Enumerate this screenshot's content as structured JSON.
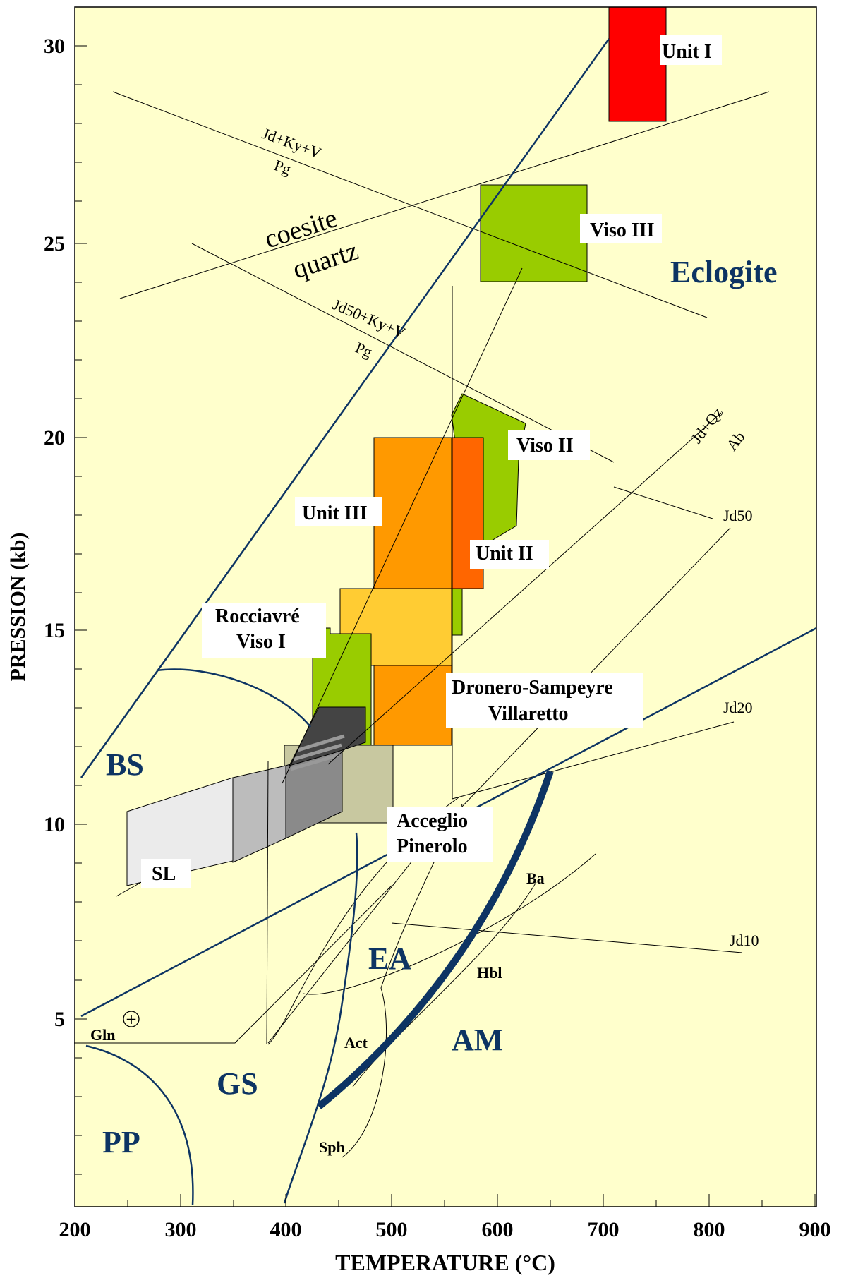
{
  "chart_data": {
    "type": "area",
    "title": "",
    "xlabel": "TEMPERATURE (°C)",
    "ylabel": "PRESSION (kb)",
    "xlim": [
      200,
      900
    ],
    "ylim": [
      0.5,
      31.1
    ],
    "x_ticks": [
      "200",
      "300",
      "400",
      "500",
      "600",
      "700",
      "800",
      "900"
    ],
    "y_ticks": [
      "5",
      "10",
      "15",
      "20",
      "25",
      "30"
    ],
    "x_tick_values": [
      200,
      300,
      400,
      500,
      600,
      700,
      800,
      900
    ],
    "y_tick_values": [
      5,
      10,
      15,
      20,
      25,
      30
    ],
    "background_color": "#ffffcc",
    "facies_color": "#0d3463",
    "facies_labels": [
      {
        "text": "Eclogite",
        "x": 812,
        "y": 24.3
      },
      {
        "text": "BS",
        "x": 252,
        "y": 11.5
      },
      {
        "text": "EA",
        "x": 498,
        "y": 6.2
      },
      {
        "text": "AM",
        "x": 583,
        "y": 4.0
      },
      {
        "text": "GS",
        "x": 358,
        "y": 2.8
      },
      {
        "text": "PP",
        "x": 247,
        "y": 1.3
      }
    ],
    "unit_boxes": [
      {
        "name": "Unit I",
        "color": "#ff0000",
        "points": [
          [
            700,
            28.1
          ],
          [
            750,
            28.1
          ],
          [
            750,
            31.1
          ],
          [
            700,
            31.1
          ]
        ],
        "label_x": 746,
        "label_y": 29.9
      },
      {
        "name": "Viso III",
        "color": "#99cc00",
        "points": [
          [
            630,
            24.0
          ],
          [
            680,
            24.0
          ],
          [
            680,
            26.5
          ],
          [
            630,
            26.5
          ]
        ],
        "label_x": 713,
        "label_y": 25.4
      },
      {
        "name": "Viso II",
        "color": "#99cc00",
        "points": [
          [
            556,
            15.0
          ],
          [
            568,
            15.0
          ],
          [
            568,
            16.0
          ],
          [
            556,
            16.0
          ],
          [
            556,
            17.5
          ],
          [
            602,
            17.5
          ],
          [
            618,
            20.3
          ],
          [
            606,
            21.1
          ],
          [
            586,
            21.1
          ],
          [
            556,
            21.1
          ]
        ],
        "label_x": 623,
        "label_y": 19.8
      },
      {
        "name": "Unit III",
        "color": "#ff9900",
        "points": [
          [
            480,
            16.0
          ],
          [
            556,
            16.0
          ],
          [
            556,
            20.0
          ],
          [
            480,
            20.0
          ]
        ],
        "label_x": 447,
        "label_y": 17.8
      },
      {
        "name": "Unit II",
        "color": "#ff6600",
        "points": [
          [
            556,
            16.0
          ],
          [
            595,
            16.0
          ],
          [
            595,
            20.0
          ],
          [
            556,
            20.0
          ]
        ],
        "label_x": 627,
        "label_y": 17.0
      },
      {
        "name": "Rocciavré",
        "color": "#ffcc33",
        "points": [
          [
            450,
            14.0
          ],
          [
            556,
            14.0
          ],
          [
            556,
            16.0
          ],
          [
            450,
            16.0
          ]
        ],
        "label_x": 330,
        "label_y": 15.3
      },
      {
        "name": "Viso I",
        "color": "#99cc00",
        "points": [
          [
            415,
            11.0
          ],
          [
            465,
            11.5
          ],
          [
            465,
            14.8
          ],
          [
            430,
            14.8
          ],
          [
            430,
            15.0
          ],
          [
            415,
            15.0
          ]
        ],
        "label_x": 330,
        "label_y": 14.5
      },
      {
        "name": "Dronero-Sampeyre",
        "color": "#ff9900",
        "points": [
          [
            480,
            12.0
          ],
          [
            556,
            12.0
          ],
          [
            556,
            14.0
          ],
          [
            480,
            14.0
          ]
        ],
        "label_x": 642,
        "label_y": 13.5
      },
      {
        "name": "Villaretto",
        "color": "#ff9900",
        "points": [
          [
            480,
            12.0
          ],
          [
            556,
            12.0
          ],
          [
            556,
            14.0
          ],
          [
            480,
            14.0
          ]
        ],
        "label_x": 642,
        "label_y": 12.8
      },
      {
        "name": "Acceglio",
        "color": "#c8c8a0",
        "points": [
          [
            400,
            10.1
          ],
          [
            500,
            10.1
          ],
          [
            500,
            12.0
          ],
          [
            400,
            12.0
          ]
        ],
        "label_x": 532,
        "label_y": 10.0
      },
      {
        "name": "Pinerolo",
        "color": "#c8c8a0",
        "points": [
          [
            400,
            10.1
          ],
          [
            500,
            10.1
          ],
          [
            500,
            12.0
          ],
          [
            400,
            12.0
          ]
        ],
        "label_x": 532,
        "label_y": 9.4
      },
      {
        "name": "SL",
        "color": "#ebebeb",
        "points": [
          [
            250,
            8.4
          ],
          [
            250,
            10.4
          ],
          [
            348,
            11.3
          ],
          [
            348,
            9.7
          ]
        ],
        "label_x": 283,
        "label_y": 8.7
      }
    ],
    "reaction_curves": [
      {
        "label": "Jd+Ky+V",
        "sub": "Pg",
        "points": [
          [
            238,
            28.9
          ],
          [
            870,
            23.1
          ]
        ],
        "label_x": 405,
        "label_y": 26.9
      },
      {
        "label": "Jd50+Ky+V",
        "sub": "Pg",
        "points": [
          [
            310,
            25.1
          ],
          [
            557,
            21.6
          ]
        ],
        "label_x": 465,
        "label_y": 22.4
      },
      {
        "label": "coesite",
        "sub": "quartz",
        "points": [
          [
            246,
            23.6
          ],
          [
            850,
            28.9
          ]
        ],
        "label_x": 382,
        "label_y": 25.3
      },
      {
        "label": "Jd+Qz",
        "sub": "Ab",
        "points": [
          [
            440,
            12.5
          ],
          [
            845,
            20.9
          ]
        ],
        "label_x": 800,
        "label_y": 20.3
      },
      {
        "label": "Jd50",
        "points": [
          [
            700,
            19.2
          ],
          [
            835,
            17.8
          ]
        ],
        "label_x": 830,
        "label_y": 17.8
      },
      {
        "label": "Jd20",
        "points": [
          [
            555,
            10.6
          ],
          [
            830,
            12.8
          ]
        ],
        "label_x": 830,
        "label_y": 12.8
      },
      {
        "label": "Jd10",
        "points": [
          [
            488,
            7.6
          ],
          [
            827,
            6.7
          ]
        ],
        "label_x": 835,
        "label_y": 7.2
      },
      {
        "label": "Ba",
        "points": [
          [
            600,
            8.1
          ],
          [
            700,
            9.4
          ]
        ],
        "label_x": 615,
        "label_y": 8.2
      },
      {
        "label": "Hbl",
        "points": [
          [
            420,
            4.1
          ],
          [
            590,
            6.5
          ]
        ],
        "label_x": 583,
        "label_y": 5.8
      },
      {
        "label": "Act",
        "points": [
          [
            440,
            4.3
          ],
          [
            460,
            4.3
          ]
        ],
        "label_x": 428,
        "label_y": 4.2
      },
      {
        "label": "Sph",
        "points": [
          [
            450,
            2.0
          ],
          [
            470,
            2.0
          ]
        ],
        "label_x": 400,
        "label_y": 1.7
      },
      {
        "label": "Gln",
        "points": [
          [
            200,
            4.4
          ],
          [
            345,
            4.4
          ]
        ],
        "label_x": 217,
        "label_y": 4.9
      }
    ],
    "facies_boundaries": [
      [
        [
          205,
          11.2
        ],
        [
          701,
          30.2
        ]
      ],
      [
        [
          205,
          5.1
        ],
        [
          900,
          15.0
        ]
      ],
      [
        [
          435,
          3.1
        ],
        [
          480,
          4.1
        ],
        [
          530,
          5.5
        ],
        [
          580,
          7.2
        ],
        [
          620,
          9.1
        ],
        [
          645,
          11.4
        ]
      ],
      [
        [
          392,
          0.8
        ],
        [
          405,
          2.5
        ],
        [
          420,
          5.0
        ],
        [
          428,
          7.5
        ],
        [
          433,
          10.0
        ]
      ],
      [
        [
          280,
          13.9
        ],
        [
          320,
          13.7
        ],
        [
          360,
          13.2
        ],
        [
          390,
          12.5
        ]
      ],
      [
        [
          205,
          4.2
        ],
        [
          250,
          3.7
        ],
        [
          280,
          2.8
        ],
        [
          300,
          1.5
        ],
        [
          302,
          0.6
        ]
      ]
    ],
    "annotations": [
      "Rocciavré",
      "Viso I",
      "Dronero-Sampeyre",
      "Villaretto",
      "Acceglio",
      "Pinerolo",
      "+"
    ],
    "grid": false,
    "legend": "none"
  }
}
